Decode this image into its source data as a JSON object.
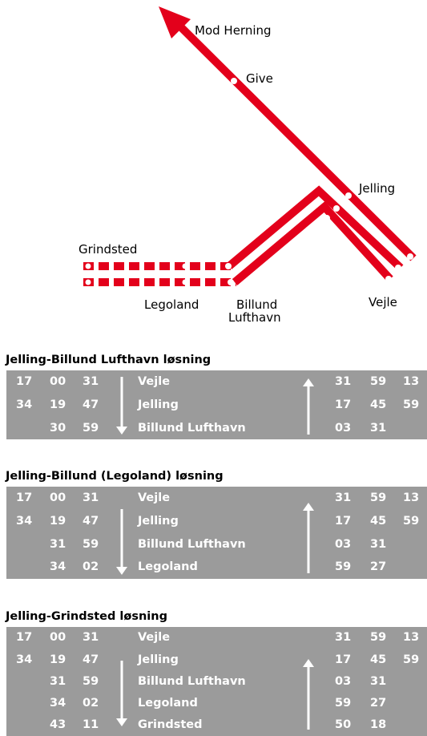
{
  "map": {
    "labels": [
      "Mod Herning",
      "Give",
      "Jelling",
      "Grindsted",
      "Legoland",
      "Billund",
      "Lufthavn",
      "Vejle"
    ]
  },
  "tables": [
    {
      "title": "Jelling-Billund Lufthavn løsning",
      "rows": [
        {
          "left": [
            "17",
            "00",
            "31"
          ],
          "station": "Vejle",
          "right": [
            "31",
            "59",
            "13"
          ]
        },
        {
          "left": [
            "34",
            "19",
            "47"
          ],
          "station": "Jelling",
          "right": [
            "17",
            "45",
            "59"
          ]
        },
        {
          "left": [
            "30",
            "59"
          ],
          "station": "Billund Lufthavn",
          "right": [
            "03",
            "31"
          ]
        }
      ]
    },
    {
      "title": "Jelling-Billund (Legoland) løsning",
      "rows": [
        {
          "left": [
            "17",
            "00",
            "31"
          ],
          "station": "Vejle",
          "right": [
            "31",
            "59",
            "13"
          ]
        },
        {
          "left": [
            "34",
            "19",
            "47"
          ],
          "station": "Jelling",
          "right": [
            "17",
            "45",
            "59"
          ]
        },
        {
          "left": [
            "31",
            "59"
          ],
          "station": "Billund Lufthavn",
          "right": [
            "03",
            "31"
          ]
        },
        {
          "left": [
            "34",
            "02"
          ],
          "station": "Legoland",
          "right": [
            "59",
            "27"
          ]
        }
      ]
    },
    {
      "title": "Jelling-Grindsted løsning",
      "rows": [
        {
          "left": [
            "17",
            "00",
            "31"
          ],
          "station": "Vejle",
          "right": [
            "31",
            "59",
            "13"
          ]
        },
        {
          "left": [
            "34",
            "19",
            "47"
          ],
          "station": "Jelling",
          "right": [
            "17",
            "45",
            "59"
          ]
        },
        {
          "left": [
            "31",
            "59"
          ],
          "station": "Billund Lufthavn",
          "right": [
            "03",
            "31"
          ]
        },
        {
          "left": [
            "34",
            "02"
          ],
          "station": "Legoland",
          "right": [
            "59",
            "27"
          ]
        },
        {
          "left": [
            "43",
            "11"
          ],
          "station": "Grindsted",
          "right": [
            "50",
            "18"
          ]
        }
      ]
    }
  ]
}
